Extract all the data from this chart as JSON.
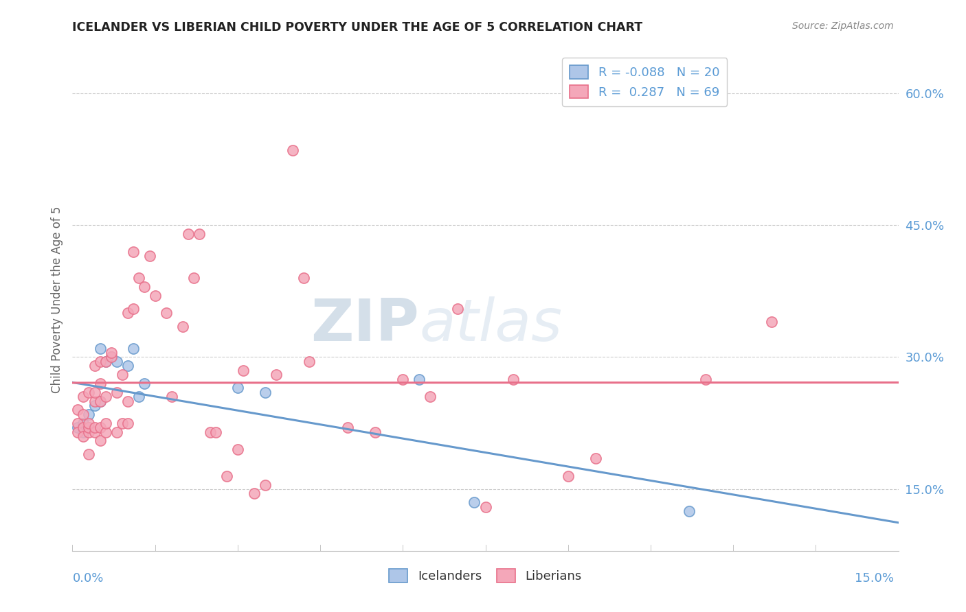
{
  "title": "ICELANDER VS LIBERIAN CHILD POVERTY UNDER THE AGE OF 5 CORRELATION CHART",
  "source": "Source: ZipAtlas.com",
  "ylabel": "Child Poverty Under the Age of 5",
  "xlim": [
    0.0,
    0.15
  ],
  "ylim": [
    0.08,
    0.65
  ],
  "yticks": [
    0.15,
    0.3,
    0.45,
    0.6
  ],
  "ytick_labels": [
    "15.0%",
    "30.0%",
    "45.0%",
    "60.0%"
  ],
  "xtick_labels": [
    "0.0%",
    "15.0%"
  ],
  "legend_icelander_R": "-0.088",
  "legend_icelander_N": "20",
  "legend_liberian_R": "0.287",
  "legend_liberian_N": "69",
  "icelander_color": "#aec6e8",
  "liberian_color": "#f4a7b9",
  "icelander_line_color": "#6699cc",
  "liberian_line_color": "#e8708a",
  "watermark_zip": "ZIP",
  "watermark_atlas": "atlas",
  "background_color": "#ffffff",
  "icelander_x": [
    0.001,
    0.002,
    0.002,
    0.003,
    0.003,
    0.004,
    0.005,
    0.005,
    0.006,
    0.007,
    0.008,
    0.01,
    0.011,
    0.012,
    0.013,
    0.03,
    0.035,
    0.063,
    0.073,
    0.112
  ],
  "icelander_y": [
    0.22,
    0.225,
    0.215,
    0.22,
    0.235,
    0.245,
    0.25,
    0.31,
    0.295,
    0.3,
    0.295,
    0.29,
    0.31,
    0.255,
    0.27,
    0.265,
    0.26,
    0.275,
    0.135,
    0.125
  ],
  "liberian_x": [
    0.001,
    0.001,
    0.001,
    0.002,
    0.002,
    0.002,
    0.002,
    0.003,
    0.003,
    0.003,
    0.003,
    0.003,
    0.004,
    0.004,
    0.004,
    0.004,
    0.004,
    0.005,
    0.005,
    0.005,
    0.005,
    0.005,
    0.006,
    0.006,
    0.006,
    0.006,
    0.007,
    0.007,
    0.008,
    0.008,
    0.009,
    0.009,
    0.01,
    0.01,
    0.01,
    0.011,
    0.011,
    0.012,
    0.013,
    0.014,
    0.015,
    0.017,
    0.018,
    0.02,
    0.021,
    0.022,
    0.023,
    0.025,
    0.026,
    0.028,
    0.03,
    0.031,
    0.033,
    0.035,
    0.037,
    0.04,
    0.042,
    0.043,
    0.05,
    0.055,
    0.06,
    0.065,
    0.07,
    0.075,
    0.08,
    0.09,
    0.095,
    0.115,
    0.127
  ],
  "liberian_y": [
    0.24,
    0.225,
    0.215,
    0.255,
    0.235,
    0.22,
    0.21,
    0.215,
    0.26,
    0.22,
    0.225,
    0.19,
    0.215,
    0.22,
    0.25,
    0.26,
    0.29,
    0.205,
    0.22,
    0.25,
    0.27,
    0.295,
    0.215,
    0.225,
    0.255,
    0.295,
    0.3,
    0.305,
    0.215,
    0.26,
    0.225,
    0.28,
    0.225,
    0.25,
    0.35,
    0.355,
    0.42,
    0.39,
    0.38,
    0.415,
    0.37,
    0.35,
    0.255,
    0.335,
    0.44,
    0.39,
    0.44,
    0.215,
    0.215,
    0.165,
    0.195,
    0.285,
    0.145,
    0.155,
    0.28,
    0.535,
    0.39,
    0.295,
    0.22,
    0.215,
    0.275,
    0.255,
    0.355,
    0.13,
    0.275,
    0.165,
    0.185,
    0.275,
    0.34
  ]
}
